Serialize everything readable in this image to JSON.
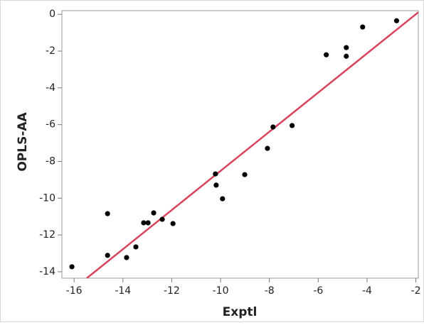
{
  "chart_data": {
    "type": "scatter",
    "x_label": "Exptl",
    "y_label": "OPLS-AA",
    "series": [
      {
        "color": "#000000",
        "x": [
          -16.09,
          -14.63,
          -14.63,
          -13.85,
          -13.47,
          -13.15,
          -12.97,
          -12.74,
          -12.39,
          -11.95,
          -10.21,
          -10.18,
          -9.92,
          -9.01,
          -8.08,
          -7.85,
          -7.07,
          -5.67,
          -4.85,
          -4.85,
          -4.18,
          -2.79
        ],
        "values": [
          -13.73,
          -13.11,
          -10.84,
          -13.23,
          -12.65,
          -11.34,
          -11.34,
          -10.8,
          -11.15,
          -11.38,
          -8.68,
          -9.29,
          -10.03,
          -8.72,
          -7.29,
          -6.13,
          -6.05,
          -2.2,
          -1.81,
          -2.28,
          -0.69,
          -0.35
        ]
      }
    ],
    "fit_line": {
      "color": "#d9435a",
      "x": [
        -15.48,
        -1.9
      ],
      "values": [
        -14.35,
        0.11
      ]
    },
    "xlim": [
      -16.5,
      -1.9
    ],
    "ylim": [
      -14.35,
      0.2
    ],
    "xticks": [
      -16,
      -14,
      -12,
      -10,
      -8,
      -6,
      -4,
      -2
    ],
    "yticks": [
      0,
      -2,
      -4,
      -6,
      -8,
      -10,
      -12,
      -14
    ]
  }
}
